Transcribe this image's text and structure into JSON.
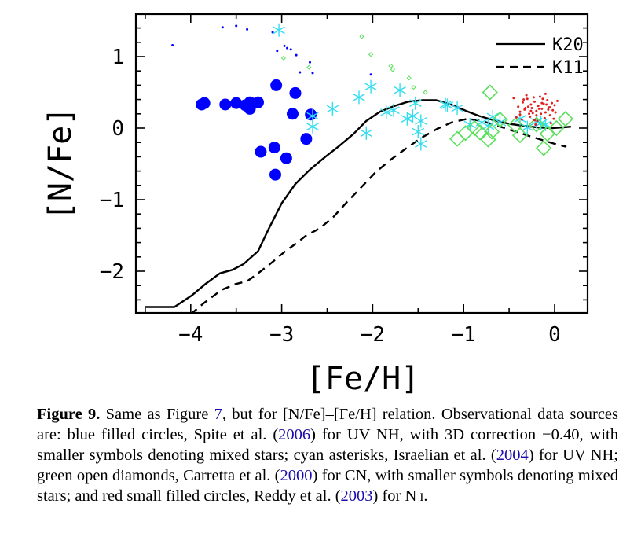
{
  "chart_data": {
    "type": "line",
    "xlabel": "[Fe/H]",
    "ylabel": "[N/Fe]",
    "xlim": [
      -4.5,
      0.38
    ],
    "ylim": [
      -2.6,
      1.6
    ],
    "xticks": [
      -4,
      -3,
      -2,
      -1,
      0
    ],
    "xtick_labels": [
      "−4",
      "−3",
      "−2",
      "−1",
      "0"
    ],
    "yticks": [
      -2,
      -1,
      0,
      1
    ],
    "ytick_labels": [
      "−2",
      "−1",
      "0",
      "1"
    ],
    "legend": {
      "position": "top-right",
      "entries": [
        "K20",
        "K11"
      ]
    },
    "series": [
      {
        "name": "K20",
        "style": "solid",
        "color": "#000000",
        "x": [
          -4.5,
          -4.18,
          -3.99,
          -3.84,
          -3.68,
          -3.54,
          -3.42,
          -3.26,
          -3.14,
          -3.0,
          -2.85,
          -2.69,
          -2.52,
          -2.37,
          -2.21,
          -2.07,
          -1.92,
          -1.76,
          -1.61,
          -1.45,
          -1.3,
          -1.14,
          -0.97,
          -0.83,
          -0.67,
          -0.5,
          -0.33,
          -0.19,
          -0.03,
          0.09,
          0.18
        ],
        "y": [
          -2.5,
          -2.5,
          -2.34,
          -2.18,
          -2.03,
          -1.98,
          -1.9,
          -1.72,
          -1.4,
          -1.05,
          -0.78,
          -0.58,
          -0.4,
          -0.25,
          -0.08,
          0.1,
          0.23,
          0.31,
          0.37,
          0.39,
          0.39,
          0.33,
          0.24,
          0.17,
          0.11,
          0.06,
          0.03,
          0.01,
          0.0,
          0.01,
          0.02
        ]
      },
      {
        "name": "K11",
        "style": "dashed",
        "color": "#000000",
        "x": [
          -4.0,
          -3.85,
          -3.66,
          -3.51,
          -3.38,
          -3.24,
          -3.1,
          -2.97,
          -2.84,
          -2.73,
          -2.58,
          -2.43,
          -2.28,
          -2.12,
          -1.97,
          -1.81,
          -1.64,
          -1.47,
          -1.29,
          -1.13,
          -0.96,
          -0.8,
          -0.62,
          -0.45,
          -0.28,
          -0.1,
          0.03,
          0.13
        ],
        "y": [
          -2.6,
          -2.44,
          -2.26,
          -2.18,
          -2.14,
          -2.01,
          -1.87,
          -1.73,
          -1.61,
          -1.5,
          -1.4,
          -1.24,
          -1.03,
          -0.82,
          -0.62,
          -0.45,
          -0.29,
          -0.14,
          -0.01,
          0.08,
          0.13,
          0.1,
          0.03,
          -0.04,
          -0.11,
          -0.18,
          -0.23,
          -0.26
        ]
      },
      {
        "name": "",
        "kind": "blue filled circles",
        "color": "#0000ff",
        "marker": "filled-circle",
        "x": [
          -3.88,
          -3.85,
          -3.62,
          -3.5,
          -3.4,
          -3.35,
          -3.35,
          -3.26,
          -3.23,
          -3.08,
          -3.07,
          -3.06,
          -2.95,
          -2.88,
          -2.85,
          -2.73,
          -2.68
        ],
        "y": [
          0.33,
          0.35,
          0.33,
          0.35,
          0.32,
          0.36,
          0.27,
          0.36,
          -0.33,
          -0.27,
          -0.65,
          0.6,
          -0.42,
          0.2,
          0.49,
          -0.15,
          0.19
        ]
      },
      {
        "name": "",
        "kind": "blue small filled circles (mixed stars)",
        "color": "#0000ff",
        "marker": "small-filled-circle",
        "x": [
          -4.2,
          -3.65,
          -3.5,
          -3.38,
          -3.1,
          -3.05,
          -2.97,
          -2.94,
          -2.9,
          -2.84,
          -2.8,
          -2.69,
          -2.66,
          -2.02
        ],
        "y": [
          1.16,
          1.41,
          1.43,
          1.38,
          1.34,
          1.08,
          1.15,
          1.12,
          1.1,
          1.02,
          0.78,
          0.92,
          0.77,
          0.75
        ]
      },
      {
        "name": "",
        "kind": "cyan asterisks",
        "color": "#33ddee",
        "marker": "asterisk",
        "x": [
          -3.03,
          -2.66,
          -2.66,
          -2.44,
          -2.15,
          -2.07,
          -2.02,
          -1.85,
          -1.77,
          -1.7,
          -1.62,
          -1.56,
          -1.53,
          -1.5,
          -1.47,
          -1.47,
          -1.2,
          -1.18,
          -1.07,
          -0.93,
          -0.8,
          -0.73,
          -0.68,
          -0.6,
          -0.38,
          -0.3,
          -0.2,
          -0.15,
          -0.1
        ],
        "y": [
          1.37,
          0.02,
          0.17,
          0.27,
          0.43,
          -0.07,
          0.58,
          0.22,
          0.25,
          0.53,
          0.13,
          0.17,
          0.35,
          -0.05,
          0.1,
          -0.22,
          0.33,
          0.32,
          0.28,
          0.05,
          0.08,
          0.03,
          0.16,
          0.08,
          0.13,
          0.01,
          0.09,
          0.07,
          0.05
        ]
      },
      {
        "name": "",
        "kind": "green open diamonds",
        "color": "#5de05d",
        "marker": "open-diamond",
        "x": [
          -1.07,
          -0.98,
          -0.88,
          -0.82,
          -0.73,
          -0.71,
          -0.69,
          -0.6,
          -0.43,
          -0.38,
          -0.2,
          -0.12,
          -0.08,
          0.02,
          0.12
        ],
        "y": [
          -0.15,
          -0.07,
          0.0,
          -0.06,
          -0.16,
          0.5,
          -0.05,
          0.12,
          0.04,
          -0.1,
          0.05,
          -0.28,
          -0.08,
          0.0,
          0.13
        ]
      },
      {
        "name": "",
        "kind": "green small open diamonds (mixed stars)",
        "color": "#5de05d",
        "marker": "small-open-diamond",
        "x": [
          -2.98,
          -2.7,
          -2.12,
          -2.02,
          -1.8,
          -1.78,
          -1.6,
          -1.55,
          -1.42
        ],
        "y": [
          0.98,
          0.85,
          1.28,
          1.03,
          0.87,
          0.82,
          0.7,
          0.57,
          0.5
        ]
      },
      {
        "name": "",
        "kind": "red small filled circles",
        "color": "#e02020",
        "marker": "small-filled-circle",
        "x": [
          -0.45,
          -0.4,
          -0.38,
          -0.35,
          -0.33,
          -0.3,
          -0.28,
          -0.26,
          -0.25,
          -0.22,
          -0.2,
          -0.18,
          -0.16,
          -0.14,
          -0.12,
          -0.1,
          -0.08,
          -0.06,
          -0.05,
          -0.03,
          -0.02,
          0.0,
          0.03,
          -0.42,
          -0.36,
          -0.31,
          -0.27,
          -0.23,
          -0.19,
          -0.15,
          -0.11,
          -0.07,
          -0.04,
          -0.01,
          -0.29,
          -0.21,
          -0.13,
          -0.09,
          -0.24,
          -0.17,
          -0.34,
          -0.26,
          -0.2,
          -0.14,
          -0.05,
          0.01,
          -0.38,
          -0.32,
          -0.1,
          -0.22
        ],
        "y": [
          0.42,
          0.3,
          0.23,
          0.36,
          0.26,
          0.41,
          0.2,
          0.33,
          0.28,
          0.37,
          0.24,
          0.31,
          0.44,
          0.27,
          0.34,
          0.22,
          0.39,
          0.29,
          0.18,
          0.35,
          0.25,
          0.32,
          0.38,
          0.15,
          0.12,
          0.46,
          0.16,
          0.43,
          0.1,
          0.2,
          0.14,
          0.26,
          0.07,
          0.13,
          0.3,
          0.05,
          0.41,
          0.33,
          0.21,
          0.27,
          0.4,
          0.24,
          0.18,
          0.35,
          0.29,
          0.22,
          0.19,
          0.28,
          0.48,
          0.11
        ]
      }
    ]
  },
  "caption": {
    "label": "Figure 9.",
    "t1": " Same as Figure ",
    "ref_fig": "7",
    "t2": ", but for [N/Fe]–[Fe/H] relation. Observational data sources are: blue filled circles, Spite et al. (",
    "y1": "2006",
    "t3": ") for UV NH, with 3D correction −0.40, with smaller symbols denoting mixed stars; cyan asterisks, Israelian et al. (",
    "y2": "2004",
    "t4": ") for UV NH; green open diamonds, Carretta et al. (",
    "y3": "2000",
    "t5": ") for CN, with smaller symbols denoting mixed stars; and red small filled circles, Reddy et al. (",
    "y4": "2003",
    "t6": ") for N ",
    "t7": "I",
    "t8": "."
  }
}
